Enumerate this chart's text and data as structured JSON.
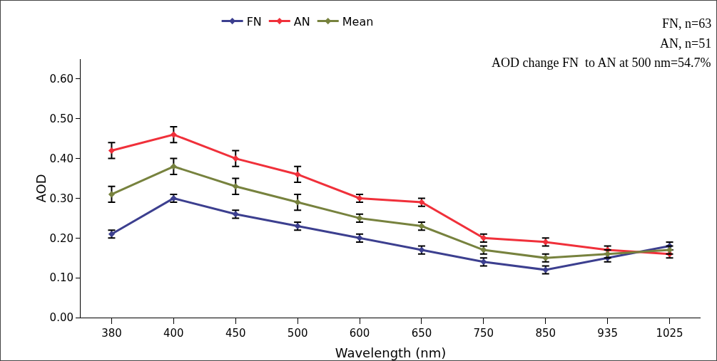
{
  "chart_data": {
    "type": "line",
    "xlabel": "Wavelength (nm)",
    "ylabel": "AOD",
    "categories": [
      "380",
      "400",
      "450",
      "500",
      "600",
      "650",
      "750",
      "850",
      "935",
      "1025"
    ],
    "series": [
      {
        "name": "FN",
        "color": "#3c3f8f",
        "values": [
          0.21,
          0.3,
          0.26,
          0.23,
          0.2,
          0.17,
          0.14,
          0.12,
          0.15,
          0.18
        ],
        "errors": [
          0.01,
          0.01,
          0.01,
          0.01,
          0.01,
          0.01,
          0.01,
          0.01,
          0.01,
          0.01
        ]
      },
      {
        "name": "AN",
        "color": "#f0303a",
        "values": [
          0.42,
          0.46,
          0.4,
          0.36,
          0.3,
          0.29,
          0.2,
          0.19,
          0.17,
          0.16
        ],
        "errors": [
          0.02,
          0.02,
          0.02,
          0.02,
          0.01,
          0.01,
          0.01,
          0.01,
          0.01,
          0.01
        ]
      },
      {
        "name": "Mean",
        "color": "#77823e",
        "values": [
          0.31,
          0.38,
          0.33,
          0.29,
          0.25,
          0.23,
          0.17,
          0.15,
          0.16,
          0.17
        ],
        "errors": [
          0.02,
          0.02,
          0.02,
          0.02,
          0.01,
          0.01,
          0.01,
          0.01,
          0.01,
          0.01
        ]
      }
    ],
    "ylim": [
      0,
      0.65
    ],
    "yticks": [
      {
        "value": 0,
        "label": "0.00"
      },
      {
        "value": 0.1,
        "label": "0.10"
      },
      {
        "value": 0.2,
        "label": "0.20"
      },
      {
        "value": 0.3,
        "label": "0.30"
      },
      {
        "value": 0.4,
        "label": "0.40"
      },
      {
        "value": 0.5,
        "label": "0.50"
      },
      {
        "value": 0.6,
        "label": "0.60"
      }
    ],
    "annotations": [
      "FN, n=63",
      "AN, n=51",
      "AOD change FN  to AN at 500 nm=54.7%"
    ],
    "grid": false,
    "legend": "top",
    "marker": "diamond",
    "line_style": "solid"
  }
}
